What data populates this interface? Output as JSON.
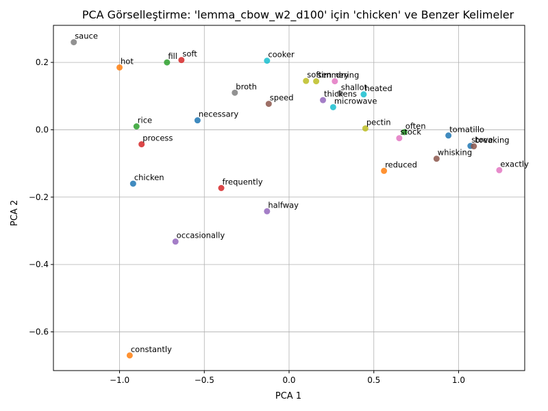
{
  "chart_data": {
    "type": "scatter",
    "title": "PCA Görselleştirme: 'lemma_cbow_w2_d100' için 'chicken' ve Benzer Kelimeler",
    "xlabel": "PCA 1",
    "ylabel": "PCA 2",
    "xlim": [
      -1.39,
      1.39
    ],
    "ylim": [
      -0.715,
      0.31
    ],
    "grid": true,
    "xticks": [
      -1.0,
      -0.5,
      0.0,
      0.5,
      1.0
    ],
    "xtick_labels": [
      "−1.0",
      "−0.5",
      "0.0",
      "0.5",
      "1.0"
    ],
    "yticks": [
      -0.6,
      -0.4,
      -0.2,
      0.0,
      0.2
    ],
    "ytick_labels": [
      "−0.6",
      "−0.4",
      "−0.2",
      "0.0",
      "0.2"
    ],
    "points": [
      {
        "label": "sauce",
        "x": -1.27,
        "y": 0.26,
        "color": "#7f7f7f"
      },
      {
        "label": "hot",
        "x": -1.0,
        "y": 0.185,
        "color": "#ff7f0e"
      },
      {
        "label": "fill",
        "x": -0.72,
        "y": 0.2,
        "color": "#2ca02c"
      },
      {
        "label": "soft",
        "x": -0.635,
        "y": 0.207,
        "color": "#d62728"
      },
      {
        "label": "cooker",
        "x": -0.13,
        "y": 0.205,
        "color": "#17becf"
      },
      {
        "label": "broth",
        "x": -0.32,
        "y": 0.11,
        "color": "#7f7f7f"
      },
      {
        "label": "speed",
        "x": -0.12,
        "y": 0.077,
        "color": "#8c564b"
      },
      {
        "label": "soften",
        "x": 0.1,
        "y": 0.145,
        "color": "#bcbd22"
      },
      {
        "label": "simmering",
        "x": 0.16,
        "y": 0.144,
        "color": "#bcbd22"
      },
      {
        "label": "dry",
        "x": 0.27,
        "y": 0.144,
        "color": "#e377c2"
      },
      {
        "label": "shallot",
        "x": 0.3,
        "y": 0.108,
        "color": "#7f7f7f"
      },
      {
        "label": "heated",
        "x": 0.44,
        "y": 0.105,
        "color": "#17becf"
      },
      {
        "label": "thickens",
        "x": 0.2,
        "y": 0.088,
        "color": "#9467bd"
      },
      {
        "label": "microwave",
        "x": 0.26,
        "y": 0.067,
        "color": "#17becf"
      },
      {
        "label": "necessary",
        "x": -0.54,
        "y": 0.028,
        "color": "#1f77b4"
      },
      {
        "label": "rice",
        "x": -0.9,
        "y": 0.01,
        "color": "#2ca02c"
      },
      {
        "label": "pectin",
        "x": 0.45,
        "y": 0.004,
        "color": "#bcbd22"
      },
      {
        "label": "often",
        "x": 0.68,
        "y": -0.007,
        "color": "#2ca02c"
      },
      {
        "label": "stock",
        "x": 0.65,
        "y": -0.025,
        "color": "#e377c2"
      },
      {
        "label": "tomatillo",
        "x": 0.94,
        "y": -0.017,
        "color": "#1f77b4"
      },
      {
        "label": "stove",
        "x": 1.07,
        "y": -0.048,
        "color": "#1f77b4"
      },
      {
        "label": "breaking",
        "x": 1.09,
        "y": -0.049,
        "color": "#8c564b"
      },
      {
        "label": "process",
        "x": -0.87,
        "y": -0.043,
        "color": "#d62728"
      },
      {
        "label": "whisking",
        "x": 0.87,
        "y": -0.086,
        "color": "#8c564b"
      },
      {
        "label": "exactly",
        "x": 1.24,
        "y": -0.12,
        "color": "#e377c2"
      },
      {
        "label": "reduced",
        "x": 0.56,
        "y": -0.122,
        "color": "#ff7f0e"
      },
      {
        "label": "chicken",
        "x": -0.92,
        "y": -0.16,
        "color": "#1f77b4"
      },
      {
        "label": "frequently",
        "x": -0.4,
        "y": -0.173,
        "color": "#d62728"
      },
      {
        "label": "halfway",
        "x": -0.13,
        "y": -0.242,
        "color": "#9467bd"
      },
      {
        "label": "occasionally",
        "x": -0.67,
        "y": -0.332,
        "color": "#9467bd"
      },
      {
        "label": "constantly",
        "x": -0.94,
        "y": -0.67,
        "color": "#ff7f0e"
      }
    ]
  }
}
